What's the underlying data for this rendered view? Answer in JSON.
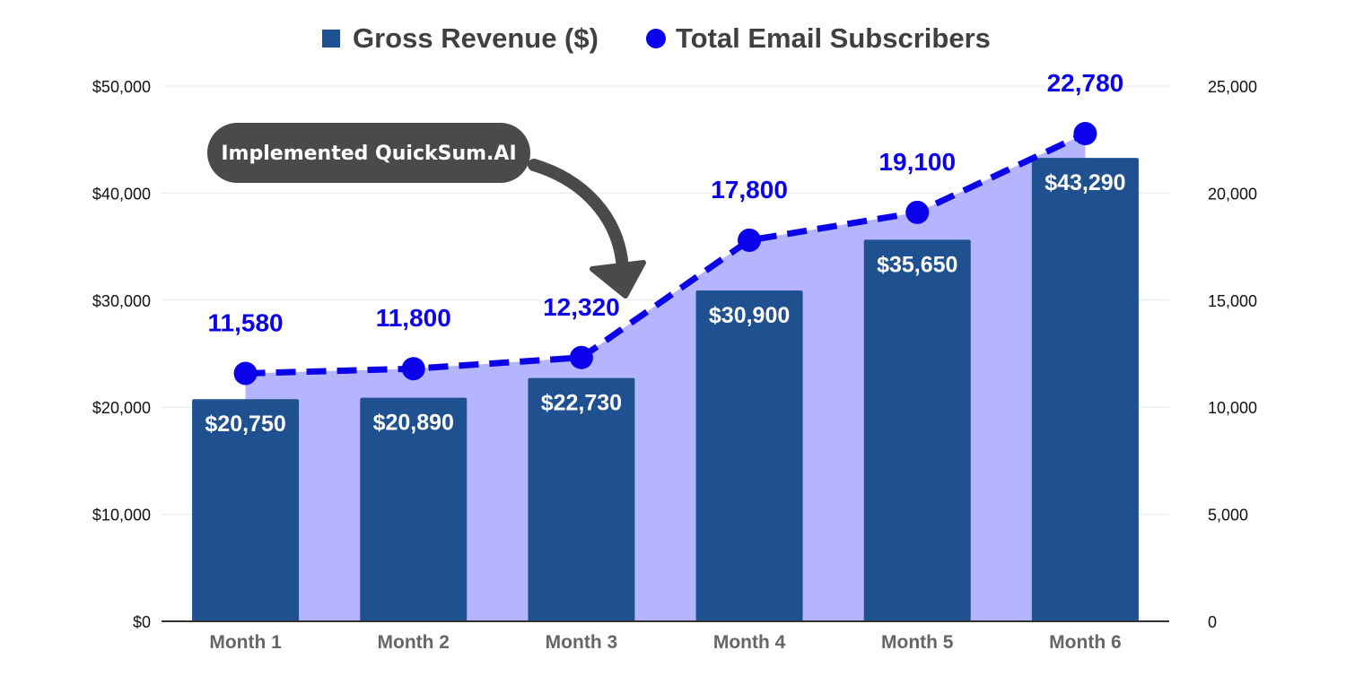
{
  "chart_data": {
    "type": "bar",
    "categories": [
      "Month 1",
      "Month 2",
      "Month 3",
      "Month 4",
      "Month 5",
      "Month 6"
    ],
    "series": [
      {
        "name": "Gross Revenue ($)",
        "type": "bar",
        "axis": "left",
        "values": [
          20750,
          20890,
          22730,
          30900,
          35650,
          43290
        ],
        "labels": [
          "$20,750",
          "$20,890",
          "$22,730",
          "$30,900",
          "$35,650",
          "$43,290"
        ],
        "color": "#1f5191"
      },
      {
        "name": "Total Email Subscribers",
        "type": "line",
        "line_style": "dashed",
        "area_fill": true,
        "axis": "right",
        "values": [
          11580,
          11800,
          12320,
          17800,
          19100,
          22780
        ],
        "labels": [
          "11,580",
          "11,800",
          "12,320",
          "17,800",
          "19,100",
          "22,780"
        ],
        "color": "#0a00ea",
        "area_color": "#b4b4ff"
      }
    ],
    "left_axis": {
      "ylim": [
        0,
        50000
      ],
      "ticks": [
        0,
        10000,
        20000,
        30000,
        40000,
        50000
      ],
      "tick_labels": [
        "$0",
        "$10,000",
        "$20,000",
        "$30,000",
        "$40,000",
        "$50,000"
      ]
    },
    "right_axis": {
      "ylim": [
        0,
        25000
      ],
      "ticks": [
        0,
        5000,
        10000,
        15000,
        20000,
        25000
      ],
      "tick_labels": [
        "0",
        "5,000",
        "10,000",
        "15,000",
        "20,000",
        "25,000"
      ]
    },
    "grid": true,
    "legend_position": "top-center",
    "annotations": [
      {
        "text": "Implemented QuickSum.AI",
        "points_to": "Month 3",
        "color": "#4a4a4a"
      }
    ]
  }
}
